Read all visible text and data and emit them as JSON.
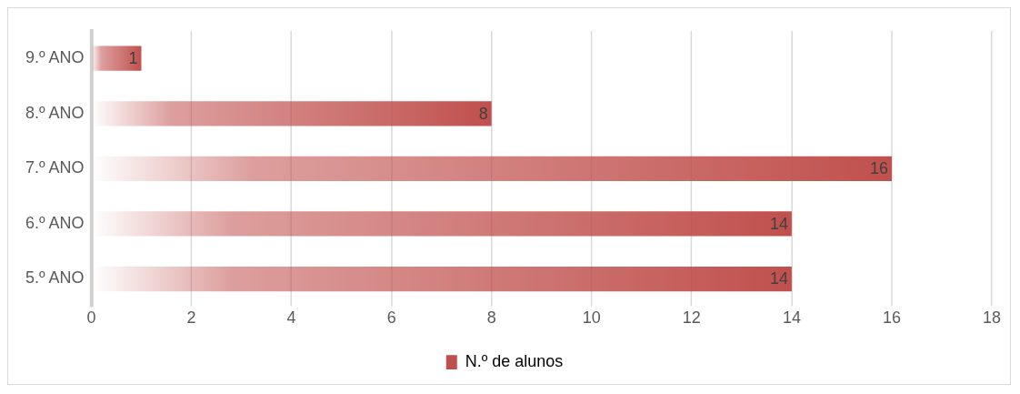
{
  "chart_data": {
    "type": "bar",
    "orientation": "horizontal",
    "categories": [
      "9.º ANO",
      "8.º ANO",
      "7.º ANO",
      "6.º ANO",
      "5.º ANO"
    ],
    "series": [
      {
        "name": "N.º de alunos",
        "color": "#c0504d",
        "values": [
          1,
          8,
          16,
          14,
          14
        ]
      }
    ],
    "xlim": [
      0,
      18
    ],
    "xticks": [
      0,
      2,
      4,
      6,
      8,
      10,
      12,
      14,
      16,
      18
    ],
    "grid": "x",
    "legend": "bottom",
    "data_labels": true
  }
}
